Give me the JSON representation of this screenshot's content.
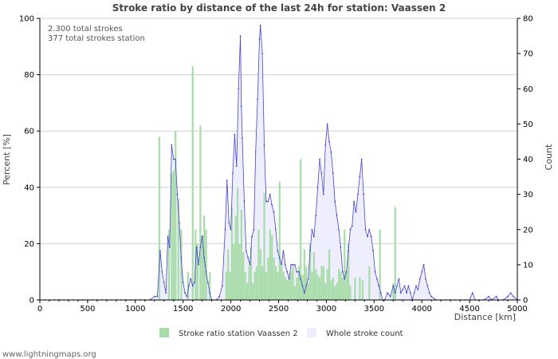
{
  "chart_data": {
    "type": "bar+line",
    "title": "Stroke ratio by distance of the last 24h for station: Vaassen 2",
    "xlabel": "Distance   [km]",
    "ylabel_left": "Percent   [%]",
    "ylabel_right": "Count",
    "xlim": [
      0,
      5000
    ],
    "ylim_left": [
      0,
      100
    ],
    "ylim_right": [
      0,
      80
    ],
    "x_ticks": [
      0,
      500,
      1000,
      1500,
      2000,
      2500,
      3000,
      3500,
      4000,
      4500,
      5000
    ],
    "x_tick_labels": [
      "0",
      "500",
      "1000",
      "1500",
      "2000",
      "2500",
      "3000",
      "3500",
      "4000",
      "4500",
      "5000"
    ],
    "y_left_ticks": [
      0,
      20,
      40,
      60,
      80,
      100
    ],
    "y_left_tick_labels": [
      "0",
      "20",
      "40",
      "60",
      "80",
      "100"
    ],
    "y_right_ticks": [
      0,
      10,
      20,
      30,
      40,
      50,
      60,
      70,
      80
    ],
    "y_right_tick_labels": [
      "0",
      "10",
      "20",
      "30",
      "40",
      "50",
      "60",
      "70",
      "80"
    ],
    "annotations": [
      "2.300 total strokes",
      "377 total strokes station"
    ],
    "legend": [
      "Stroke ratio station Vaassen 2",
      "Whole stroke count"
    ],
    "series": [
      {
        "name": "Stroke ratio station Vaassen 2",
        "kind": "bar",
        "axis": "left",
        "color": "#a8dca8",
        "points": [
          [
            1250,
            58
          ],
          [
            1350,
            25
          ],
          [
            1380,
            45
          ],
          [
            1400,
            46
          ],
          [
            1420,
            60
          ],
          [
            1450,
            36
          ],
          [
            1480,
            25
          ],
          [
            1550,
            10
          ],
          [
            1600,
            83
          ],
          [
            1630,
            25
          ],
          [
            1650,
            20
          ],
          [
            1680,
            62
          ],
          [
            1700,
            23
          ],
          [
            1720,
            30
          ],
          [
            1740,
            25
          ],
          [
            1780,
            10
          ],
          [
            1950,
            10
          ],
          [
            1970,
            18
          ],
          [
            1990,
            10
          ],
          [
            2010,
            33
          ],
          [
            2030,
            20
          ],
          [
            2050,
            30
          ],
          [
            2070,
            40
          ],
          [
            2090,
            20
          ],
          [
            2110,
            32
          ],
          [
            2130,
            17
          ],
          [
            2150,
            10
          ],
          [
            2170,
            6
          ],
          [
            2190,
            12
          ],
          [
            2210,
            19
          ],
          [
            2230,
            6
          ],
          [
            2250,
            10
          ],
          [
            2270,
            12
          ],
          [
            2290,
            25
          ],
          [
            2310,
            18
          ],
          [
            2330,
            12
          ],
          [
            2350,
            38
          ],
          [
            2370,
            10
          ],
          [
            2390,
            15
          ],
          [
            2410,
            25
          ],
          [
            2430,
            23
          ],
          [
            2450,
            15
          ],
          [
            2470,
            12
          ],
          [
            2490,
            10
          ],
          [
            2510,
            42
          ],
          [
            2530,
            12
          ],
          [
            2550,
            10
          ],
          [
            2570,
            8
          ],
          [
            2590,
            7
          ],
          [
            2610,
            8
          ],
          [
            2630,
            10
          ],
          [
            2650,
            12
          ],
          [
            2670,
            5
          ],
          [
            2690,
            8
          ],
          [
            2710,
            12
          ],
          [
            2730,
            50
          ],
          [
            2750,
            9
          ],
          [
            2770,
            18
          ],
          [
            2790,
            12
          ],
          [
            2810,
            6
          ],
          [
            2830,
            20
          ],
          [
            2850,
            10
          ],
          [
            2870,
            17
          ],
          [
            2890,
            11
          ],
          [
            2910,
            9
          ],
          [
            2930,
            8
          ],
          [
            2950,
            12
          ],
          [
            2970,
            12
          ],
          [
            2990,
            6
          ],
          [
            3010,
            11
          ],
          [
            3030,
            18
          ],
          [
            3050,
            7
          ],
          [
            3070,
            8
          ],
          [
            3090,
            5
          ],
          [
            3110,
            6
          ],
          [
            3130,
            11
          ],
          [
            3150,
            10
          ],
          [
            3170,
            8
          ],
          [
            3190,
            25
          ],
          [
            3210,
            10
          ],
          [
            3230,
            20
          ],
          [
            3250,
            5
          ],
          [
            3300,
            8
          ],
          [
            3350,
            8
          ],
          [
            3380,
            7
          ],
          [
            3450,
            12
          ],
          [
            3560,
            25
          ],
          [
            3700,
            6
          ],
          [
            3720,
            33
          ]
        ]
      },
      {
        "name": "Whole stroke count",
        "kind": "line",
        "axis": "right",
        "color": "#4444cc",
        "fill": "#eeeeff",
        "points": [
          [
            0,
            0
          ],
          [
            50,
            0
          ],
          [
            100,
            0
          ],
          [
            150,
            0
          ],
          [
            200,
            0
          ],
          [
            250,
            0
          ],
          [
            300,
            0
          ],
          [
            350,
            0
          ],
          [
            400,
            0
          ],
          [
            450,
            0
          ],
          [
            500,
            0
          ],
          [
            550,
            0
          ],
          [
            600,
            0
          ],
          [
            650,
            0
          ],
          [
            700,
            0
          ],
          [
            750,
            0
          ],
          [
            800,
            0
          ],
          [
            850,
            0
          ],
          [
            900,
            0
          ],
          [
            950,
            0
          ],
          [
            1000,
            0
          ],
          [
            1050,
            0
          ],
          [
            1100,
            0
          ],
          [
            1150,
            0
          ],
          [
            1200,
            1
          ],
          [
            1230,
            1
          ],
          [
            1260,
            14
          ],
          [
            1280,
            8
          ],
          [
            1300,
            5
          ],
          [
            1320,
            2
          ],
          [
            1340,
            18
          ],
          [
            1360,
            15
          ],
          [
            1380,
            44
          ],
          [
            1400,
            40
          ],
          [
            1420,
            40
          ],
          [
            1440,
            30
          ],
          [
            1460,
            22
          ],
          [
            1480,
            12
          ],
          [
            1500,
            5
          ],
          [
            1520,
            2
          ],
          [
            1540,
            1
          ],
          [
            1560,
            4
          ],
          [
            1580,
            6
          ],
          [
            1600,
            4
          ],
          [
            1620,
            5
          ],
          [
            1640,
            15
          ],
          [
            1660,
            10
          ],
          [
            1680,
            15
          ],
          [
            1700,
            18
          ],
          [
            1720,
            12
          ],
          [
            1740,
            8
          ],
          [
            1760,
            5
          ],
          [
            1780,
            2
          ],
          [
            1800,
            0
          ],
          [
            1850,
            0
          ],
          [
            1880,
            1
          ],
          [
            1910,
            4
          ],
          [
            1940,
            20
          ],
          [
            1960,
            34
          ],
          [
            1980,
            22
          ],
          [
            2000,
            20
          ],
          [
            2020,
            36
          ],
          [
            2040,
            47
          ],
          [
            2060,
            38
          ],
          [
            2080,
            60
          ],
          [
            2100,
            75
          ],
          [
            2110,
            55
          ],
          [
            2120,
            46
          ],
          [
            2140,
            28
          ],
          [
            2160,
            14
          ],
          [
            2180,
            12
          ],
          [
            2200,
            10
          ],
          [
            2220,
            18
          ],
          [
            2240,
            20
          ],
          [
            2260,
            42
          ],
          [
            2280,
            57
          ],
          [
            2300,
            74
          ],
          [
            2310,
            78
          ],
          [
            2330,
            70
          ],
          [
            2350,
            44
          ],
          [
            2370,
            28
          ],
          [
            2390,
            28
          ],
          [
            2410,
            30
          ],
          [
            2430,
            27
          ],
          [
            2450,
            25
          ],
          [
            2470,
            20
          ],
          [
            2490,
            14
          ],
          [
            2510,
            12
          ],
          [
            2530,
            10
          ],
          [
            2550,
            14
          ],
          [
            2570,
            10
          ],
          [
            2590,
            8
          ],
          [
            2610,
            6
          ],
          [
            2630,
            10
          ],
          [
            2650,
            10
          ],
          [
            2670,
            10
          ],
          [
            2690,
            8
          ],
          [
            2710,
            8
          ],
          [
            2730,
            6
          ],
          [
            2750,
            4
          ],
          [
            2770,
            2
          ],
          [
            2790,
            4
          ],
          [
            2810,
            6
          ],
          [
            2830,
            14
          ],
          [
            2850,
            20
          ],
          [
            2870,
            18
          ],
          [
            2890,
            24
          ],
          [
            2910,
            32
          ],
          [
            2930,
            40
          ],
          [
            2950,
            36
          ],
          [
            2970,
            30
          ],
          [
            2990,
            44
          ],
          [
            3010,
            50
          ],
          [
            3030,
            45
          ],
          [
            3050,
            42
          ],
          [
            3070,
            36
          ],
          [
            3090,
            28
          ],
          [
            3110,
            24
          ],
          [
            3130,
            20
          ],
          [
            3150,
            15
          ],
          [
            3170,
            8
          ],
          [
            3190,
            6
          ],
          [
            3210,
            8
          ],
          [
            3230,
            14
          ],
          [
            3250,
            20
          ],
          [
            3270,
            21
          ],
          [
            3290,
            28
          ],
          [
            3310,
            25
          ],
          [
            3330,
            30
          ],
          [
            3350,
            35
          ],
          [
            3370,
            40
          ],
          [
            3390,
            30
          ],
          [
            3410,
            20
          ],
          [
            3430,
            18
          ],
          [
            3450,
            20
          ],
          [
            3470,
            18
          ],
          [
            3490,
            14
          ],
          [
            3510,
            8
          ],
          [
            3530,
            6
          ],
          [
            3550,
            4
          ],
          [
            3570,
            2
          ],
          [
            3590,
            0
          ],
          [
            3610,
            0
          ],
          [
            3640,
            2
          ],
          [
            3670,
            1
          ],
          [
            3700,
            4
          ],
          [
            3720,
            2
          ],
          [
            3740,
            4
          ],
          [
            3760,
            6
          ],
          [
            3780,
            2
          ],
          [
            3800,
            3
          ],
          [
            3820,
            4
          ],
          [
            3840,
            2
          ],
          [
            3860,
            4
          ],
          [
            3880,
            2
          ],
          [
            3900,
            0
          ],
          [
            3920,
            2
          ],
          [
            3940,
            4
          ],
          [
            3960,
            3
          ],
          [
            3980,
            6
          ],
          [
            4000,
            8
          ],
          [
            4020,
            10
          ],
          [
            4040,
            6
          ],
          [
            4060,
            4
          ],
          [
            4080,
            2
          ],
          [
            4100,
            1
          ],
          [
            4150,
            0
          ],
          [
            4200,
            0
          ],
          [
            4250,
            0
          ],
          [
            4300,
            0
          ],
          [
            4350,
            0
          ],
          [
            4400,
            0
          ],
          [
            4450,
            0
          ],
          [
            4500,
            0
          ],
          [
            4530,
            2
          ],
          [
            4560,
            0
          ],
          [
            4600,
            0
          ],
          [
            4650,
            0
          ],
          [
            4700,
            1
          ],
          [
            4730,
            0
          ],
          [
            4780,
            1
          ],
          [
            4800,
            0
          ],
          [
            4850,
            0
          ],
          [
            4900,
            1
          ],
          [
            4930,
            2
          ],
          [
            4960,
            1
          ],
          [
            5000,
            0
          ]
        ]
      }
    ]
  },
  "footer": "www.lightningmaps.org"
}
